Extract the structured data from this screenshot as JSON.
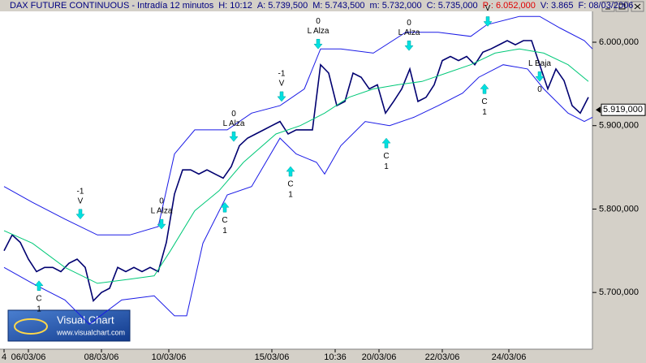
{
  "chart_data": {
    "type": "line",
    "header": [
      {
        "text": "DAX FUTURE CONTINUOUS - Intradía 12 minutos",
        "color": "#000080"
      },
      {
        "text": "H: 10:12",
        "color": "#000080"
      },
      {
        "text": "A: 5.739,500",
        "color": "#000080"
      },
      {
        "text": "M: 5.743,500",
        "color": "#000080"
      },
      {
        "text": "m: 5.732,000",
        "color": "#000080"
      },
      {
        "text": "C: 5.735,000",
        "color": "#000080"
      },
      {
        "text": "P : 6.052,000",
        "color": "#e00000"
      },
      {
        "text": "V: 3.865",
        "color": "#000080"
      },
      {
        "text": "F: 08/03/2006",
        "color": "#000080"
      }
    ],
    "xlim": [
      0,
      730
    ],
    "xticks": [
      {
        "value": 5,
        "label": "4"
      },
      {
        "value": 35,
        "label": "06/03/06"
      },
      {
        "value": 125,
        "label": "08/03/06"
      },
      {
        "value": 208,
        "label": "10/03/06"
      },
      {
        "value": 335,
        "label": "15/03/06"
      },
      {
        "value": 413,
        "label": "10:36"
      },
      {
        "value": 467,
        "label": "20/03/06"
      },
      {
        "value": 545,
        "label": "22/03/06"
      },
      {
        "value": 627,
        "label": "24/03/06"
      }
    ],
    "ylim": [
      5632,
      6037
    ],
    "yticks": [
      {
        "value": 5700,
        "label": "5.700,000"
      },
      {
        "value": 5800,
        "label": "5.800,000"
      },
      {
        "value": 5900,
        "label": "5.900,000"
      },
      {
        "value": 6000,
        "label": "6.000,000"
      }
    ],
    "last_value": {
      "value": 5919,
      "label": "5.919,000"
    },
    "series": [
      {
        "color": "#000070",
        "width": 1.6,
        "x": [
          5,
          15,
          25,
          35,
          45,
          55,
          65,
          75,
          85,
          95,
          105,
          115,
          125,
          135,
          145,
          155,
          165,
          175,
          185,
          195,
          205,
          215,
          225,
          235,
          245,
          255,
          265,
          275,
          285,
          295,
          305,
          315,
          325,
          335,
          345,
          355,
          365,
          375,
          385,
          395,
          405,
          415,
          425,
          435,
          445,
          455,
          465,
          475,
          485,
          495,
          505,
          515,
          525,
          535,
          545,
          555,
          565,
          575,
          585,
          595,
          605,
          615,
          625,
          635,
          645,
          655,
          665,
          675,
          685,
          695,
          705,
          715,
          725
        ],
        "values": [
          5750,
          5769,
          5760,
          5740,
          5725,
          5730,
          5730,
          5725,
          5735,
          5740,
          5730,
          5690,
          5700,
          5705,
          5730,
          5725,
          5730,
          5725,
          5730,
          5725,
          5760,
          5818,
          5847,
          5847,
          5842,
          5847,
          5842,
          5837,
          5851,
          5876,
          5885,
          5890,
          5895,
          5900,
          5905,
          5890,
          5895,
          5895,
          5895,
          5973,
          5963,
          5924,
          5929,
          5963,
          5958,
          5944,
          5949,
          5915,
          5929,
          5944,
          5968,
          5929,
          5934,
          5949,
          5978,
          5983,
          5978,
          5983,
          5973,
          5988,
          5992,
          5997,
          6002,
          5997,
          6002,
          6002,
          5973,
          5944,
          5968,
          5954,
          5924,
          5915,
          5934
        ]
      },
      {
        "color": "#1a1ae6",
        "width": 1,
        "x": [
          5,
          40,
          80,
          120,
          160,
          195,
          215,
          240,
          280,
          310,
          345,
          375,
          395,
          420,
          460,
          500,
          540,
          580,
          600,
          640,
          665,
          690,
          720,
          730
        ],
        "values": [
          5827,
          5808,
          5788,
          5769,
          5769,
          5779,
          5866,
          5895,
          5895,
          5915,
          5924,
          5944,
          5992,
          5992,
          5987,
          6012,
          6012,
          6007,
          6021,
          6031,
          6031,
          6017,
          6002,
          5992
        ]
      },
      {
        "color": "#1a1ae6",
        "width": 1,
        "x": [
          5,
          40,
          80,
          110,
          150,
          190,
          215,
          230,
          250,
          280,
          310,
          345,
          365,
          390,
          400,
          420,
          450,
          480,
          510,
          540,
          570,
          590,
          620,
          650,
          670,
          700,
          720,
          730
        ],
        "values": [
          5730,
          5711,
          5691,
          5662,
          5691,
          5696,
          5672,
          5672,
          5759,
          5817,
          5827,
          5885,
          5866,
          5856,
          5842,
          5876,
          5905,
          5900,
          5910,
          5924,
          5939,
          5958,
          5973,
          5968,
          5944,
          5915,
          5905,
          5910
        ]
      },
      {
        "color": "#00c878",
        "width": 1,
        "x": [
          5,
          40,
          80,
          120,
          160,
          190,
          210,
          240,
          270,
          300,
          340,
          370,
          400,
          430,
          460,
          490,
          520,
          550,
          580,
          610,
          640,
          670,
          700,
          725
        ],
        "values": [
          5774,
          5759,
          5730,
          5711,
          5716,
          5720,
          5750,
          5798,
          5822,
          5856,
          5890,
          5900,
          5915,
          5934,
          5944,
          5949,
          5953,
          5963,
          5973,
          5987,
          5992,
          5987,
          5973,
          5953
        ]
      }
    ],
    "annotations": [
      {
        "x": 48,
        "y": 5714,
        "dir": "up",
        "below": [
          "C",
          "1"
        ]
      },
      {
        "x": 99,
        "y": 5788,
        "dir": "down",
        "above": [
          "-1",
          "V"
        ]
      },
      {
        "x": 199,
        "y": 5776,
        "dir": "down",
        "above": [
          "0",
          "L Alza"
        ]
      },
      {
        "x": 277,
        "y": 5808,
        "dir": "up",
        "below": [
          "C",
          "1"
        ]
      },
      {
        "x": 288,
        "y": 5881,
        "dir": "down",
        "above": [
          "0",
          "L Alza"
        ]
      },
      {
        "x": 347,
        "y": 5929,
        "dir": "down",
        "above": [
          "-1",
          "V"
        ]
      },
      {
        "x": 358,
        "y": 5851,
        "dir": "up",
        "below": [
          "C",
          "1"
        ]
      },
      {
        "x": 392,
        "y": 5992,
        "dir": "down",
        "above": [
          "0",
          "L Alza"
        ]
      },
      {
        "x": 476,
        "y": 5885,
        "dir": "up",
        "below": [
          "C",
          "1"
        ]
      },
      {
        "x": 504,
        "y": 5990,
        "dir": "down",
        "above": [
          "0",
          "L Alza"
        ]
      },
      {
        "x": 597,
        "y": 5950,
        "dir": "up",
        "below": [
          "C",
          "1"
        ]
      },
      {
        "x": 601,
        "y": 6019,
        "dir": "down",
        "above": [
          "V"
        ]
      },
      {
        "x": 665,
        "y": 5953,
        "dir": "down",
        "above": [
          "L Baja"
        ],
        "below": [
          "0"
        ]
      }
    ],
    "logo": {
      "title": "Visual Chart",
      "url": "www.visualchart.com"
    }
  }
}
